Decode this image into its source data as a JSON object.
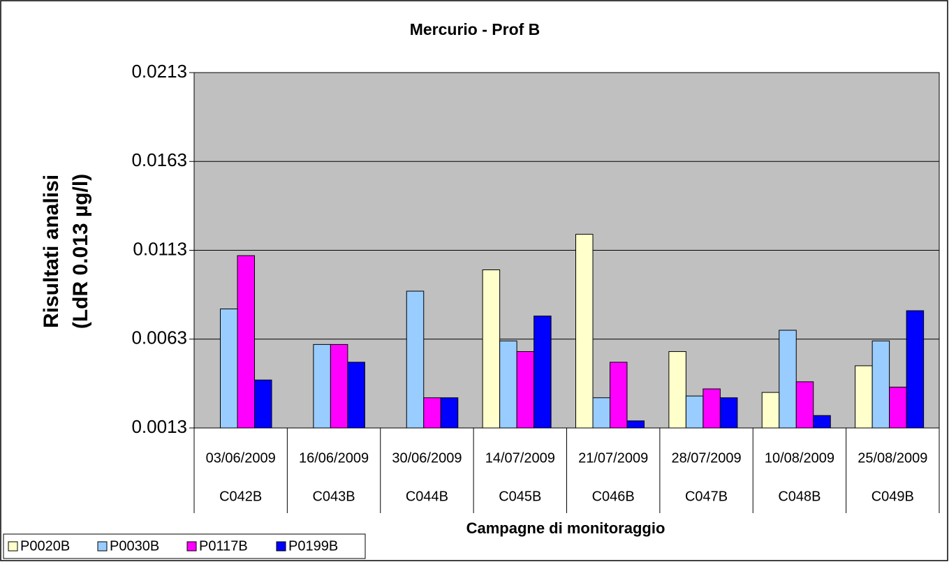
{
  "chart_data": {
    "type": "bar",
    "title": "Mercurio - Prof B",
    "y_label": [
      "Risultati analisi",
      "(LdR 0.013 µg/l)"
    ],
    "x_label": "Campagne di monitoraggio",
    "categories": [
      "03/06/2009",
      "16/06/2009",
      "30/06/2009",
      "14/07/2009",
      "21/07/2009",
      "28/07/2009",
      "10/08/2009",
      "25/08/2009"
    ],
    "category_groups": [
      "C042B",
      "C043B",
      "C044B",
      "C045B",
      "C046B",
      "C047B",
      "C048B",
      "C049B"
    ],
    "series": [
      {
        "name": "P0020B",
        "color": "#ffffcc",
        "values": [
          null,
          null,
          null,
          0.0102,
          0.0122,
          0.0056,
          0.0033,
          0.0048
        ]
      },
      {
        "name": "P0030B",
        "color": "#99ccff",
        "values": [
          0.008,
          0.006,
          0.009,
          0.0062,
          0.003,
          0.0031,
          0.0068,
          0.0062
        ]
      },
      {
        "name": "P0117B",
        "color": "#ff00ff",
        "values": [
          0.011,
          0.006,
          0.003,
          0.0056,
          0.005,
          0.0035,
          0.0039,
          0.0036
        ]
      },
      {
        "name": "P0199B",
        "color": "#0000ff",
        "values": [
          0.004,
          0.005,
          0.003,
          0.0076,
          0.0017,
          0.003,
          0.002,
          0.0079
        ]
      }
    ],
    "ylim": [
      0.0013,
      0.0213
    ],
    "yticks": [
      0.0013,
      0.0063,
      0.0113,
      0.0163,
      0.0213
    ],
    "grid": true,
    "plot_background": "#c0c0c0",
    "legend": "bottom-left"
  }
}
